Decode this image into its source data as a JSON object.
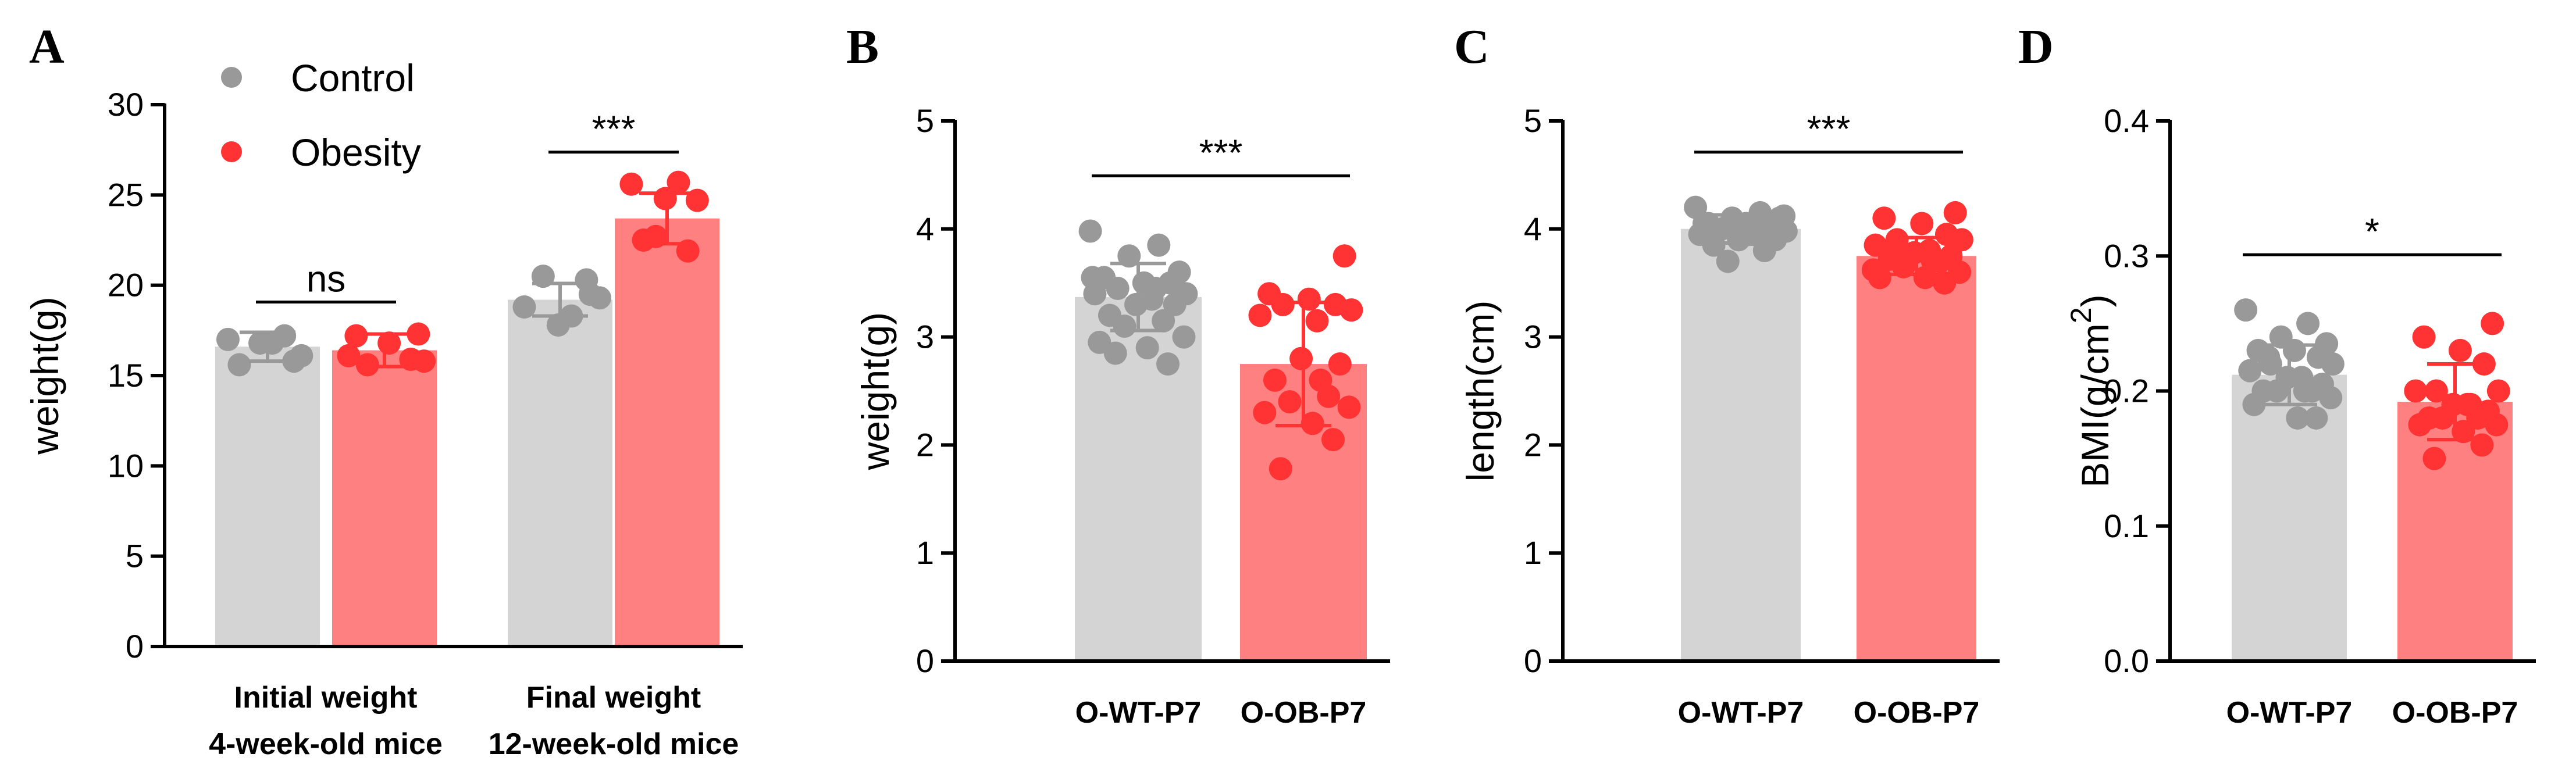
{
  "colors": {
    "control": "#999999",
    "control_bar": "#d4d4d4",
    "obesity": "#ff3333",
    "obesity_bar": "#ff8080",
    "axis": "#000000"
  },
  "legend": [
    {
      "label": "Control",
      "color": "#999999"
    },
    {
      "label": "Obesity",
      "color": "#ff3333"
    }
  ],
  "chart_data": [
    {
      "panel": "A",
      "type": "bar",
      "ylabel": "weight(g)",
      "ylim": [
        0,
        30
      ],
      "yticks": [
        0,
        5,
        10,
        15,
        20,
        25,
        30
      ],
      "groups": [
        {
          "label_lines": [
            "Initial weight",
            "4-week-old mice"
          ],
          "significance": "ns",
          "bars": [
            {
              "series": "Control",
              "mean": 16.6,
              "sd": 0.8,
              "points": [
                17.0,
                17.2,
                16.8,
                16.1,
                15.6,
                16.8,
                15.8
              ]
            },
            {
              "series": "Obesity",
              "mean": 16.4,
              "sd": 0.9,
              "points": [
                17.3,
                17.2,
                16.8,
                15.9,
                15.6,
                15.8,
                16.1
              ]
            }
          ]
        },
        {
          "label_lines": [
            "Final weight",
            "12-week-old mice"
          ],
          "significance": "***",
          "bars": [
            {
              "series": "Control",
              "mean": 19.2,
              "sd": 0.9,
              "points": [
                20.3,
                20.5,
                19.3,
                18.8,
                18.3,
                17.8,
                19.5
              ]
            },
            {
              "series": "Obesity",
              "mean": 23.7,
              "sd": 1.4,
              "points": [
                25.6,
                25.7,
                24.8,
                24.7,
                22.5,
                21.9,
                22.7
              ]
            }
          ]
        }
      ]
    },
    {
      "panel": "B",
      "type": "bar",
      "ylabel": "weight(g)",
      "ylim": [
        0,
        5
      ],
      "yticks": [
        0,
        1,
        2,
        3,
        4,
        5
      ],
      "significance": "***",
      "bars": [
        {
          "label": "O-WT-P7",
          "series": "Control",
          "mean": 3.37,
          "sd": 0.31,
          "points": [
            3.98,
            3.85,
            3.75,
            3.6,
            3.55,
            3.5,
            3.5,
            3.45,
            3.4,
            3.4,
            3.35,
            3.3,
            3.3,
            3.2,
            3.15,
            3.1,
            3.0,
            2.95,
            2.9,
            2.75,
            2.85,
            3.45,
            3.55
          ]
        },
        {
          "label": "O-OB-P7",
          "series": "Obesity",
          "mean": 2.75,
          "sd": 0.57,
          "points": [
            3.75,
            3.4,
            3.35,
            3.3,
            3.3,
            3.25,
            3.2,
            3.15,
            2.8,
            2.75,
            2.6,
            2.45,
            2.4,
            2.35,
            2.3,
            2.2,
            2.05,
            1.78,
            2.6
          ]
        }
      ]
    },
    {
      "panel": "C",
      "type": "bar",
      "ylabel": "length(cm)",
      "ylim": [
        0,
        5
      ],
      "yticks": [
        0,
        1,
        2,
        3,
        4,
        5
      ],
      "significance": "***",
      "bars": [
        {
          "label": "O-WT-P7",
          "series": "Control",
          "mean": 4.0,
          "sd": 0.13,
          "points": [
            4.2,
            4.15,
            4.1,
            4.1,
            4.05,
            4.05,
            4.0,
            4.0,
            3.98,
            3.95,
            3.95,
            3.9,
            3.9,
            3.85,
            3.8,
            3.7,
            4.12,
            4.05,
            3.95,
            4.0
          ]
        },
        {
          "label": "O-OB-P7",
          "series": "Obesity",
          "mean": 3.75,
          "sd": 0.17,
          "points": [
            4.15,
            4.1,
            4.05,
            3.95,
            3.9,
            3.9,
            3.85,
            3.8,
            3.78,
            3.75,
            3.72,
            3.7,
            3.65,
            3.6,
            3.55,
            3.55,
            3.5,
            3.8,
            3.7,
            3.62
          ]
        }
      ]
    },
    {
      "panel": "D",
      "type": "bar",
      "ylabel": "BMI(g/cm",
      "ylabel_sup": "2",
      "ylabel_end": ")",
      "ylim": [
        0.0,
        0.4
      ],
      "yticks": [
        "0.0",
        "0.1",
        "0.2",
        "0.3",
        "0.4"
      ],
      "significance": "*",
      "bars": [
        {
          "label": "O-WT-P7",
          "series": "Control",
          "mean": 0.212,
          "sd": 0.022,
          "points": [
            0.26,
            0.25,
            0.24,
            0.235,
            0.23,
            0.23,
            0.225,
            0.22,
            0.22,
            0.215,
            0.21,
            0.21,
            0.205,
            0.2,
            0.2,
            0.2,
            0.195,
            0.19,
            0.18,
            0.18,
            0.225,
            0.2
          ]
        },
        {
          "label": "O-OB-P7",
          "series": "Obesity",
          "mean": 0.192,
          "sd": 0.028,
          "points": [
            0.25,
            0.24,
            0.23,
            0.22,
            0.2,
            0.2,
            0.2,
            0.19,
            0.19,
            0.185,
            0.18,
            0.18,
            0.18,
            0.175,
            0.175,
            0.17,
            0.16,
            0.15,
            0.19
          ]
        }
      ]
    }
  ]
}
